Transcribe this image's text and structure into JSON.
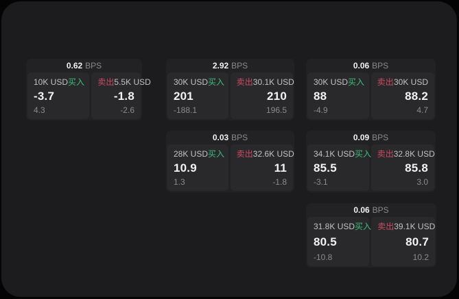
{
  "window": {
    "background": "#1c1c1e",
    "outer_background": "#040404"
  },
  "colors": {
    "buy": "#3dbd7d",
    "sell": "#cd4b64",
    "card_bg": "#222224",
    "cell_bg": "#29292b",
    "text_primary": "#f2f2f3",
    "text_secondary": "#8b8b8e",
    "text_label": "#c2c2c5"
  },
  "labels": {
    "bps_unit": "BPS",
    "buy": "买入",
    "sell": "卖出"
  },
  "cards": [
    {
      "bps": "0.62",
      "buy": {
        "amount": "10K USD",
        "price": "-3.7",
        "change": "4.3"
      },
      "sell": {
        "amount": "5.5K USD",
        "price": "-1.8",
        "change": "-2.6"
      }
    },
    {
      "bps": "2.92",
      "buy": {
        "amount": "30K USD",
        "price": "201",
        "change": "-188.1"
      },
      "sell": {
        "amount": "30.1K USD",
        "price": "210",
        "change": "196.5"
      }
    },
    {
      "bps": "0.06",
      "buy": {
        "amount": "30K USD",
        "price": "88",
        "change": "-4.9"
      },
      "sell": {
        "amount": "30K USD",
        "price": "88.2",
        "change": "4.7"
      }
    },
    {
      "bps": "0.03",
      "buy": {
        "amount": "28K USD",
        "price": "10.9",
        "change": "1.3"
      },
      "sell": {
        "amount": "32.6K USD",
        "price": "11",
        "change": "-1.8"
      }
    },
    {
      "bps": "0.09",
      "buy": {
        "amount": "34.1K USD",
        "price": "85.5",
        "change": "-3.1"
      },
      "sell": {
        "amount": "32.8K USD",
        "price": "85.8",
        "change": "3.0"
      }
    },
    {
      "bps": "0.06",
      "buy": {
        "amount": "31.8K USD",
        "price": "80.5",
        "change": "-10.8"
      },
      "sell": {
        "amount": "39.1K USD",
        "price": "80.7",
        "change": "10.2"
      }
    }
  ]
}
